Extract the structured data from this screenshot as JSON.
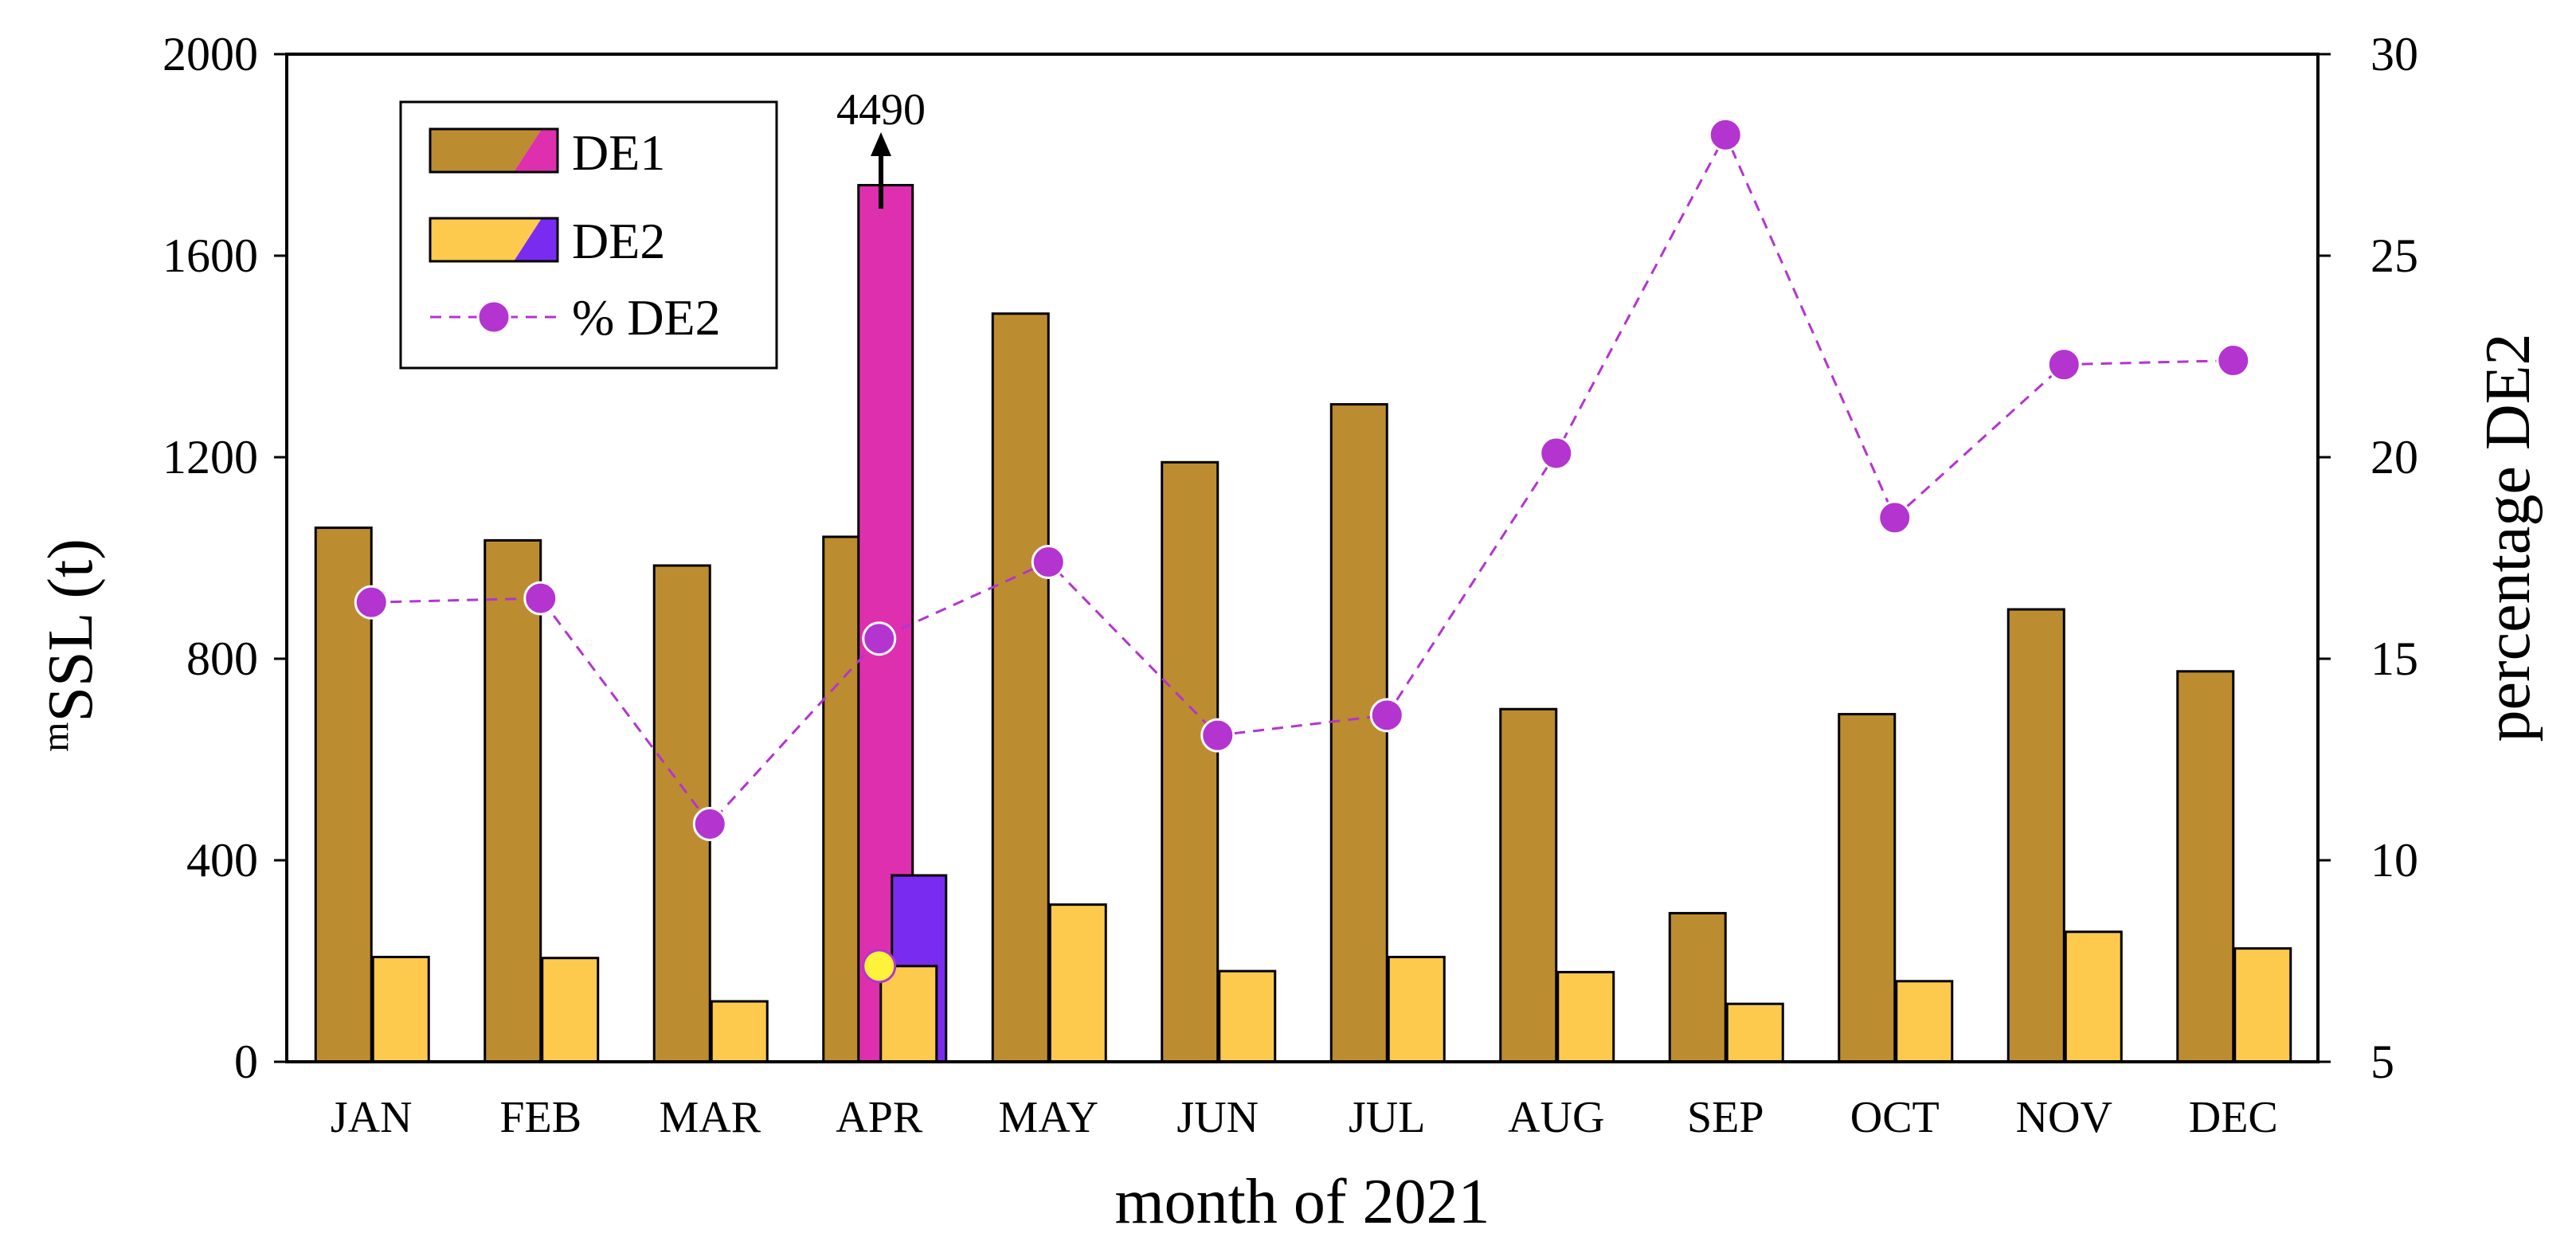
{
  "chart_data": {
    "type": "bar",
    "title": "",
    "xlabel": "month of 2021",
    "ylabel_prefix": "m",
    "ylabel_main": "SSL (t)",
    "y2label": "percentage DE2",
    "categories": [
      "JAN",
      "FEB",
      "MAR",
      "APR",
      "MAY",
      "JUN",
      "JUL",
      "AUG",
      "SEP",
      "OCT",
      "NOV",
      "DEC"
    ],
    "ylim": [
      0,
      2000
    ],
    "yticks": [
      "0",
      "400",
      "800",
      "1200",
      "1600",
      "2000"
    ],
    "y2lim": [
      5,
      30
    ],
    "y2ticks": [
      "5",
      "10",
      "15",
      "20",
      "25",
      "30"
    ],
    "series": [
      {
        "name": "DE1",
        "axis": "left",
        "kind": "bar",
        "values": [
          1060,
          1035,
          985,
          1042,
          1485,
          1190,
          1305,
          700,
          295,
          690,
          898,
          775
        ],
        "color": "#BC8C30",
        "highlight_color": "#DE2FAE"
      },
      {
        "name": "DE2",
        "axis": "left",
        "kind": "bar",
        "values": [
          208,
          206,
          120,
          190,
          312,
          180,
          208,
          178,
          115,
          160,
          258,
          225
        ],
        "color": "#FECA4E",
        "highlight_color": "#7A2BF0"
      },
      {
        "name": "% DE2",
        "axis": "right",
        "kind": "line",
        "values": [
          16.4,
          16.5,
          10.9,
          15.5,
          17.4,
          13.1,
          13.6,
          20.1,
          28.0,
          18.5,
          22.3,
          22.4
        ],
        "color": "#B434D0",
        "style": "dashed-with-markers"
      }
    ],
    "apr_extra": {
      "category": "APR",
      "de1_total": 4490,
      "de1_total_label": "4490",
      "de1_cap_value": 1740,
      "de2_total": 370
    },
    "legend_position": "top-left"
  }
}
